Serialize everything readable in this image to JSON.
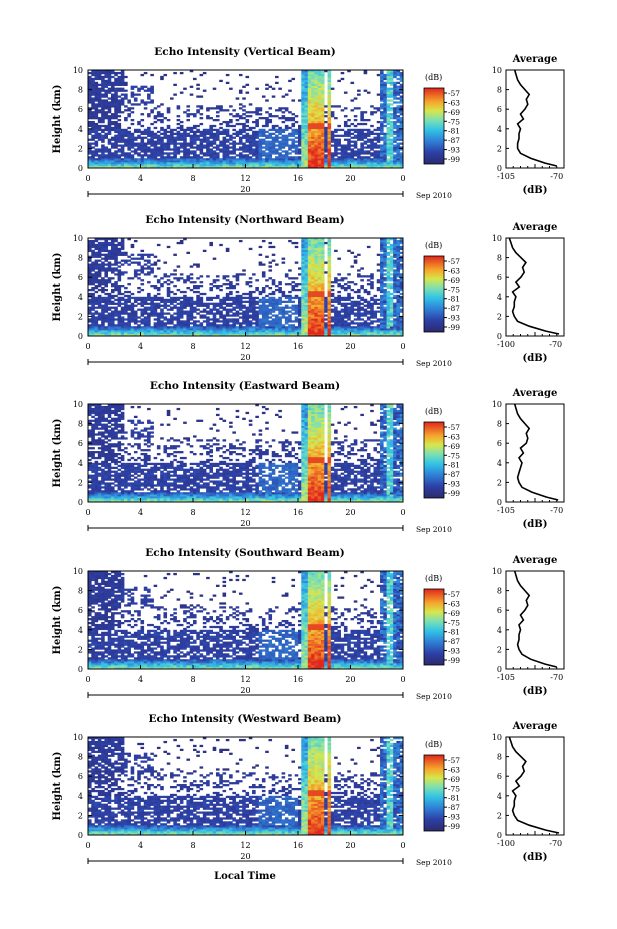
{
  "figure": {
    "xlabel": "Local Time",
    "date_label": "Sep 2010",
    "day_label": "20",
    "colorbar_unit": "(dB)",
    "colorbar_ticks": [
      "-57",
      "-63",
      "-69",
      "-75",
      "-81",
      "-87",
      "-93",
      "-99"
    ],
    "profile_title": "Average",
    "profile_xlabel": "(dB)"
  },
  "chart_data": [
    {
      "type": "heatmap",
      "title": "Echo Intensity (Vertical Beam)",
      "ylabel": "Height (km)",
      "x_ticks": [
        "0",
        "4",
        "8",
        "12",
        "16",
        "20",
        "0"
      ],
      "y_ticks": [
        "0",
        "2",
        "4",
        "6",
        "8",
        "10"
      ],
      "xlim": [
        0,
        24
      ],
      "ylim": [
        0,
        10
      ],
      "clim": [
        -102,
        -54
      ],
      "profile": {
        "xlim": [
          -105,
          -65
        ],
        "x_ticks": [
          "-105",
          "-70"
        ],
        "y_ticks": [
          "0",
          "2",
          "4",
          "6",
          "8",
          "10"
        ],
        "height_km": [
          0.2,
          0.5,
          1,
          1.5,
          2,
          2.5,
          3,
          3.5,
          4,
          4.5,
          5,
          5.5,
          6,
          6.5,
          7,
          7.5,
          8,
          8.5,
          9,
          9.5,
          10
        ],
        "intensity_db": [
          -70,
          -78,
          -88,
          -95,
          -97,
          -97,
          -96,
          -96,
          -95,
          -97,
          -93,
          -95,
          -92,
          -90,
          -91,
          -89,
          -92,
          -95,
          -97,
          -98,
          -99
        ]
      }
    },
    {
      "type": "heatmap",
      "title": "Echo Intensity (Northward Beam)",
      "ylabel": "Height (km)",
      "x_ticks": [
        "0",
        "4",
        "8",
        "12",
        "16",
        "20",
        "0"
      ],
      "y_ticks": [
        "0",
        "2",
        "4",
        "6",
        "8",
        "10"
      ],
      "xlim": [
        0,
        24
      ],
      "ylim": [
        0,
        10
      ],
      "clim": [
        -102,
        -54
      ],
      "profile": {
        "xlim": [
          -100,
          -65
        ],
        "x_ticks": [
          "-100",
          "-70"
        ],
        "y_ticks": [
          "0",
          "2",
          "4",
          "6",
          "8",
          "10"
        ],
        "height_km": [
          0.2,
          0.5,
          1,
          1.5,
          2,
          2.5,
          3,
          3.5,
          4,
          4.5,
          5,
          5.5,
          6,
          6.5,
          7,
          7.5,
          8,
          8.5,
          9,
          9.5,
          10
        ],
        "intensity_db": [
          -68,
          -76,
          -86,
          -93,
          -95,
          -96,
          -95,
          -95,
          -94,
          -96,
          -92,
          -94,
          -91,
          -89,
          -90,
          -88,
          -91,
          -94,
          -96,
          -97,
          -98
        ]
      }
    },
    {
      "type": "heatmap",
      "title": "Echo Intensity (Eastward Beam)",
      "ylabel": "Height (km)",
      "x_ticks": [
        "0",
        "4",
        "8",
        "12",
        "16",
        "20",
        "0"
      ],
      "y_ticks": [
        "0",
        "2",
        "4",
        "6",
        "8",
        "10"
      ],
      "xlim": [
        0,
        24
      ],
      "ylim": [
        0,
        10
      ],
      "clim": [
        -102,
        -54
      ],
      "profile": {
        "xlim": [
          -105,
          -65
        ],
        "x_ticks": [
          "-105",
          "-70"
        ],
        "y_ticks": [
          "0",
          "2",
          "4",
          "6",
          "8",
          "10"
        ],
        "height_km": [
          0.2,
          0.5,
          1,
          1.5,
          2,
          2.5,
          3,
          3.5,
          4,
          4.5,
          5,
          5.5,
          6,
          6.5,
          7,
          7.5,
          8,
          8.5,
          9,
          9.5,
          10
        ],
        "intensity_db": [
          -69,
          -77,
          -87,
          -94,
          -96,
          -97,
          -96,
          -95,
          -94,
          -96,
          -93,
          -95,
          -91,
          -90,
          -91,
          -89,
          -92,
          -95,
          -97,
          -98,
          -99
        ]
      }
    },
    {
      "type": "heatmap",
      "title": "Echo Intensity (Southward Beam)",
      "ylabel": "Height (km)",
      "x_ticks": [
        "0",
        "4",
        "8",
        "12",
        "16",
        "20",
        "0"
      ],
      "y_ticks": [
        "0",
        "2",
        "4",
        "6",
        "8",
        "10"
      ],
      "xlim": [
        0,
        24
      ],
      "ylim": [
        0,
        10
      ],
      "clim": [
        -102,
        -54
      ],
      "profile": {
        "xlim": [
          -105,
          -65
        ],
        "x_ticks": [
          "-105",
          "-70"
        ],
        "y_ticks": [
          "0",
          "2",
          "4",
          "6",
          "8",
          "10"
        ],
        "height_km": [
          0.2,
          0.5,
          1,
          1.5,
          2,
          2.5,
          3,
          3.5,
          4,
          4.5,
          5,
          5.5,
          6,
          6.5,
          7,
          7.5,
          8,
          8.5,
          9,
          9.5,
          10
        ],
        "intensity_db": [
          -70,
          -78,
          -88,
          -94,
          -96,
          -97,
          -96,
          -96,
          -95,
          -96,
          -93,
          -95,
          -92,
          -90,
          -91,
          -89,
          -92,
          -95,
          -97,
          -98,
          -99
        ]
      }
    },
    {
      "type": "heatmap",
      "title": "Echo Intensity (Westward Beam)",
      "ylabel": "Height (km)",
      "x_ticks": [
        "0",
        "4",
        "8",
        "12",
        "16",
        "20",
        "0"
      ],
      "y_ticks": [
        "0",
        "2",
        "4",
        "6",
        "8",
        "10"
      ],
      "xlim": [
        0,
        24
      ],
      "ylim": [
        0,
        10
      ],
      "clim": [
        -102,
        -54
      ],
      "profile": {
        "xlim": [
          -100,
          -65
        ],
        "x_ticks": [
          "-100",
          "-70"
        ],
        "y_ticks": [
          "0",
          "2",
          "4",
          "6",
          "8",
          "10"
        ],
        "height_km": [
          0.2,
          0.5,
          1,
          1.5,
          2,
          2.5,
          3,
          3.5,
          4,
          4.5,
          5,
          5.5,
          6,
          6.5,
          7,
          7.5,
          8,
          8.5,
          9,
          9.5,
          10
        ],
        "intensity_db": [
          -68,
          -76,
          -86,
          -93,
          -95,
          -96,
          -95,
          -95,
          -94,
          -96,
          -92,
          -94,
          -91,
          -89,
          -90,
          -88,
          -91,
          -94,
          -96,
          -97,
          -98
        ]
      }
    }
  ]
}
